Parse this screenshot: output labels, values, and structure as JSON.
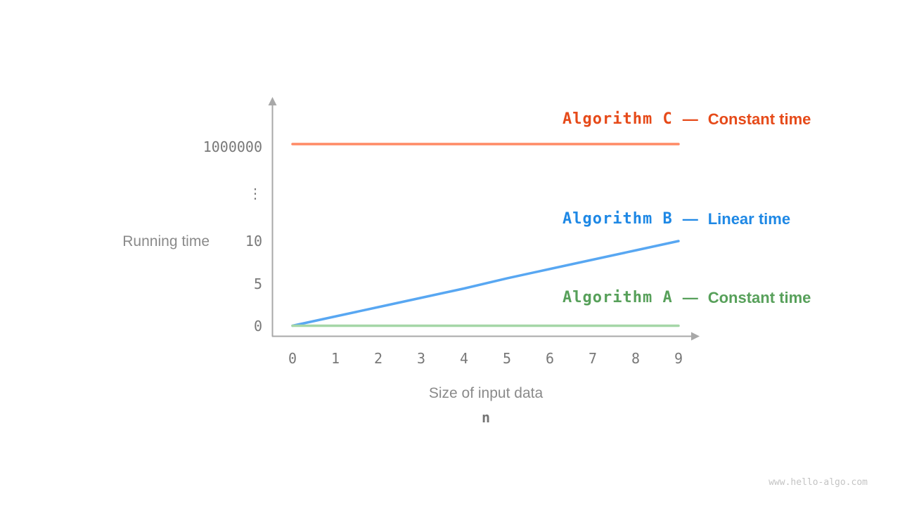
{
  "watermark": "www.hello-algo.com",
  "axes": {
    "y_title": "Running time",
    "x_title": "Size of input data",
    "x_variable": "n",
    "y_ticks": [
      "1000000",
      "⋮",
      "10",
      "5",
      "0"
    ],
    "x_ticks": [
      "0",
      "1",
      "2",
      "3",
      "4",
      "5",
      "6",
      "7",
      "8",
      "9"
    ]
  },
  "legend": [
    {
      "name": "Algorithm C",
      "separator": "—",
      "desc": "Constant time",
      "color": "#e64a19"
    },
    {
      "name": "Algorithm B",
      "separator": "—",
      "desc": "Linear time",
      "color": "#1e88e5"
    },
    {
      "name": "Algorithm A",
      "separator": "—",
      "desc": "Constant time",
      "color": "#57a05a"
    }
  ],
  "chart_data": {
    "type": "line",
    "title": "",
    "xlabel": "Size of input data",
    "x_variable": "n",
    "ylabel": "Running time",
    "x": [
      0,
      1,
      2,
      3,
      4,
      5,
      6,
      7,
      8,
      9
    ],
    "y_ticks_shown": [
      "0",
      "5",
      "10",
      "⋮",
      "1000000"
    ],
    "y_axis_break": true,
    "grid": false,
    "legend_position": "inline-right-of-lines",
    "series": [
      {
        "name": "Algorithm C",
        "complexity": "Constant time",
        "color": "#ff8a65",
        "values": [
          1000000,
          1000000,
          1000000,
          1000000,
          1000000,
          1000000,
          1000000,
          1000000,
          1000000,
          1000000
        ]
      },
      {
        "name": "Algorithm B",
        "complexity": "Linear time",
        "color": "#58a7f2",
        "values": [
          0,
          1.1,
          2.2,
          3.3,
          4.4,
          5.6,
          6.7,
          7.8,
          8.9,
          10
        ]
      },
      {
        "name": "Algorithm A",
        "complexity": "Constant time",
        "color": "#a5d6a7",
        "values": [
          0,
          0,
          0,
          0,
          0,
          0,
          0,
          0,
          0,
          0
        ]
      }
    ]
  }
}
